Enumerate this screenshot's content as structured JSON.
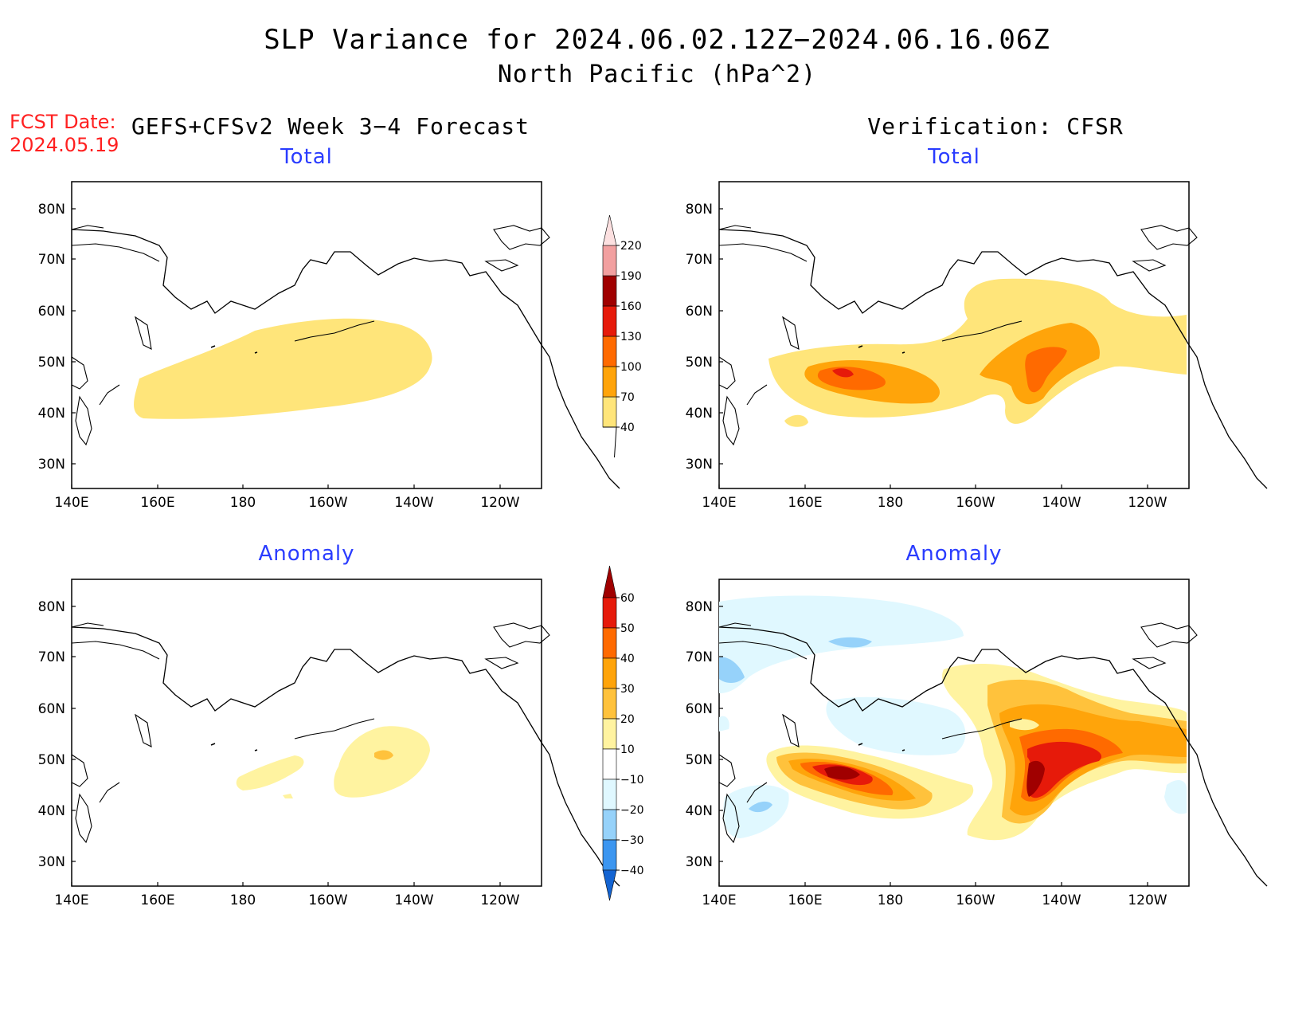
{
  "title": {
    "line1": "SLP Variance for 2024.06.02.12Z−2024.06.16.06Z",
    "line2": "North Pacific (hPa^2)"
  },
  "fcst": {
    "label": "FCST Date:",
    "date": "2024.05.19"
  },
  "columns": {
    "left": "GEFS+CFSv2 Week 3−4 Forecast",
    "right": "Verification: CFSR"
  },
  "panels": {
    "forecast_total": {
      "title": "Total"
    },
    "verification_total": {
      "title": "Total"
    },
    "forecast_anomaly": {
      "title": "Anomaly"
    },
    "verification_anomaly": {
      "title": "Anomaly"
    }
  },
  "axes": {
    "lat_labels": [
      "80N",
      "70N",
      "60N",
      "50N",
      "40N",
      "30N"
    ],
    "lon_labels": [
      "140E",
      "160E",
      "180",
      "160W",
      "140W",
      "120W"
    ]
  },
  "colorbar_total": {
    "labels": [
      "40",
      "70",
      "100",
      "130",
      "160",
      "190",
      "220"
    ],
    "colors": [
      "#ffe57a",
      "#ffa40a",
      "#ff6a00",
      "#e61a0a",
      "#a00000",
      "#f2a0a0",
      "#fce0e0"
    ]
  },
  "colorbar_anomaly": {
    "labels": [
      "60",
      "50",
      "40",
      "30",
      "20",
      "10",
      "−10",
      "−20",
      "−30",
      "−40"
    ],
    "colors": [
      "#a00000",
      "#e61a0a",
      "#ff6a00",
      "#ffa40a",
      "#ffc23c",
      "#fff3a0",
      "#ffffff",
      "#e0f8ff",
      "#96d2fa",
      "#3c96f0",
      "#1464d2"
    ]
  }
}
